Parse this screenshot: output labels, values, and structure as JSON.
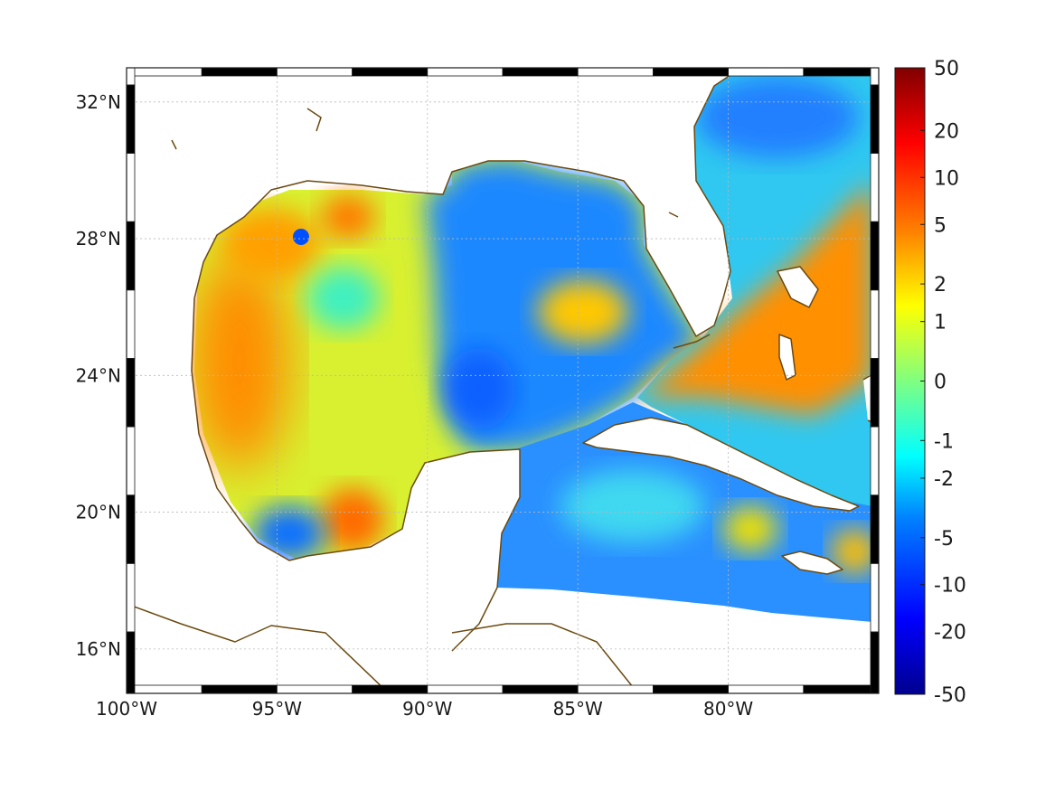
{
  "map": {
    "lat_labels": [
      "32°N",
      "28°N",
      "24°N",
      "20°N",
      "16°N"
    ],
    "lat_values": [
      32,
      28,
      24,
      20,
      16
    ],
    "lon_labels": [
      "100°W",
      "95°W",
      "90°W",
      "85°W",
      "80°W"
    ],
    "lon_values": [
      -100,
      -95,
      -90,
      -85,
      -80
    ],
    "extent": {
      "lon": [
        -100,
        -75
      ],
      "lat": [
        14.7,
        33.0
      ]
    },
    "coastline_color": "#6b4a10",
    "grid": true
  },
  "colorbar": {
    "tick_labels": [
      "50",
      "20",
      "10",
      "5",
      "2",
      "1",
      "0",
      "-1",
      "-2",
      "-5",
      "-10",
      "-20",
      "-50"
    ],
    "tick_fraction": [
      1.0,
      0.9,
      0.825,
      0.75,
      0.655,
      0.595,
      0.5,
      0.405,
      0.345,
      0.25,
      0.175,
      0.1,
      0.0
    ],
    "colormap": "jet",
    "colors": [
      "#00008f",
      "#0000ff",
      "#0080ff",
      "#00ffff",
      "#80ff80",
      "#ffff00",
      "#ff8000",
      "#ff0000",
      "#800000"
    ]
  }
}
